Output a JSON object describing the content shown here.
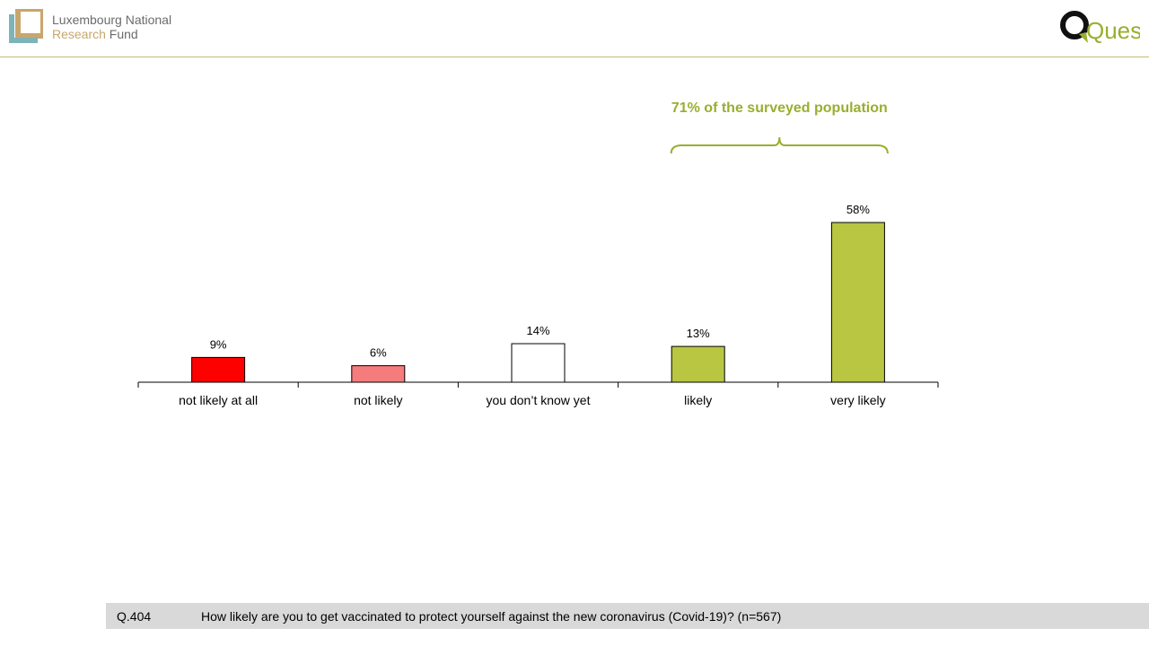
{
  "header": {
    "fnr_logo": {
      "line1": "Luxembourg National",
      "line2_accent": "Research",
      "line2_rest": " Fund"
    },
    "quest_logo_text": "Quest"
  },
  "colors": {
    "not_likely_at_all": "#ff0000",
    "not_likely": "#f47c7c",
    "you_dont_know_yet": "#ffffff",
    "likely": "#b8c642",
    "very_likely": "#b8c642",
    "annotation": "#9aae2f",
    "header_rule": "#c8b77a",
    "footer_bg": "#d9d9d9"
  },
  "chart_data": {
    "type": "bar",
    "categories": [
      "not likely at all",
      "not likely",
      "you don’t know yet",
      "likely",
      "very likely"
    ],
    "values": [
      9,
      6,
      14,
      13,
      58
    ],
    "value_labels": [
      "9%",
      "6%",
      "14%",
      "13%",
      "58%"
    ],
    "unit": "%",
    "ylim": [
      0,
      60
    ],
    "grid": false,
    "annotation": {
      "text": "71% of the surveyed population",
      "spans_categories": [
        "likely",
        "very likely"
      ]
    }
  },
  "footer": {
    "question_code": "Q.404",
    "question_text": "How likely are you to get vaccinated to protect yourself against the new coronavirus (Covid-19)? (n=567)"
  }
}
